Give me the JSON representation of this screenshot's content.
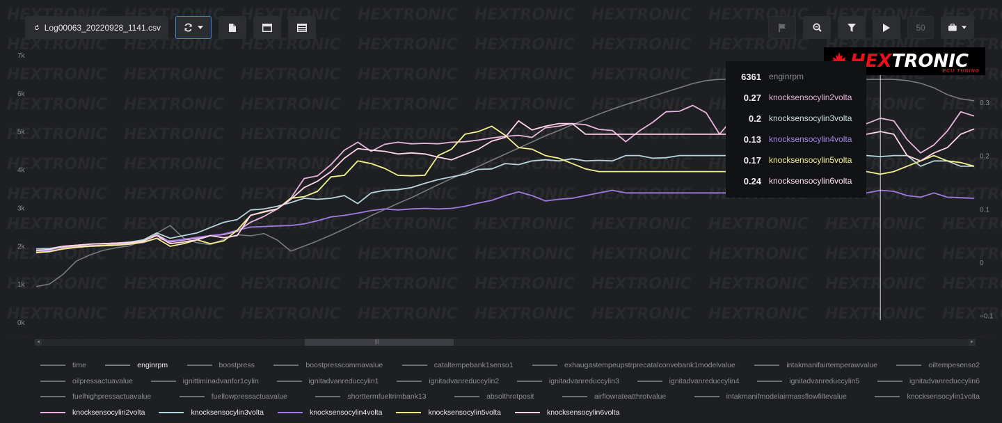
{
  "toolbar": {
    "file_name": "Log00063_20220928_1141.csv",
    "playback_speed": "50"
  },
  "logo": {
    "brand_white": "HEX",
    "brand_red": "TRONIC",
    "tagline": "ECU TUNING"
  },
  "colors": {
    "background": "#1e1f22",
    "enginrpm": "#7a7b80",
    "knocksensocylin2volta": "#e8b4dc",
    "knocksensocylin3volta": "#b6d6dc",
    "knocksensocylin4volta": "#9d7be0",
    "knocksensocylin5volta": "#f5f28e",
    "knocksensocylin6volta": "#ffd6e6",
    "accent": "#3a86e8"
  },
  "tooltip": [
    {
      "value": "6361",
      "name": "enginrpm",
      "color": "#8d8e93"
    },
    {
      "value": "0.27",
      "name": "knocksensocylin2volta",
      "color": "#e8b4dc"
    },
    {
      "value": "0.2",
      "name": "knocksensocylin3volta",
      "color": "#c6e0e4"
    },
    {
      "value": "0.13",
      "name": "knocksensocylin4volta",
      "color": "#a686ec"
    },
    {
      "value": "0.17",
      "name": "knocksensocylin5volta",
      "color": "#f5f28e"
    },
    {
      "value": "0.24",
      "name": "knocksensocylin6volta",
      "color": "#ffe0ec"
    }
  ],
  "legend_rows": [
    [
      "time",
      "enginrpm",
      "boostpress",
      "boostpresscommavalue",
      "cataltempebank1senso1",
      "exhaugastempeupstrprecatalconvebank1modelvalue",
      "intakmanifairtemperawvalue",
      "oiltempesenso2"
    ],
    [
      "oilpressactuavalue",
      "ignittiminadvanfor1cylin",
      "ignitadvanreduccylin1",
      "ignitadvanreduccylin2",
      "ignitadvanreduccylin3",
      "ignitadvanreduccylin4",
      "ignitadvanreduccylin5",
      "ignitadvanreduccylin6"
    ],
    [
      "fuelhighpressactuavalue",
      "fuellowpressactuavalue",
      "shorttermfueltrimbank13",
      "absolthrotposit",
      "airflowrateatthrotvalue",
      "intakmanifmodelairmassflowfiltevalue",
      "knocksensocylin1volta"
    ],
    [
      "knocksensocylin2volta",
      "knocksensocylin3volta",
      "knocksensocylin4volta",
      "knocksensocylin5volta",
      "knocksensocylin6volta"
    ]
  ],
  "legend_active": [
    "enginrpm",
    "knocksensocylin2volta",
    "knocksensocylin3volta",
    "knocksensocylin4volta",
    "knocksensocylin5volta",
    "knocksensocylin6volta"
  ],
  "chart_data": {
    "type": "line",
    "x": [
      0,
      1,
      2,
      3,
      4,
      5,
      6,
      7,
      8,
      9,
      10,
      11,
      12,
      13,
      14,
      15,
      16,
      17,
      18,
      19,
      20,
      21,
      22,
      23,
      24,
      25,
      26,
      27,
      28,
      29,
      30,
      31,
      32,
      33,
      34,
      35,
      36,
      37,
      38,
      39,
      40,
      41,
      42,
      43,
      44,
      45,
      46,
      47,
      48,
      49,
      50,
      51,
      52,
      53,
      54,
      55,
      56,
      57,
      58,
      59,
      60,
      61,
      62,
      63,
      64,
      65,
      66,
      67,
      68,
      69,
      70
    ],
    "y_left": {
      "ticks": [
        "0k",
        "1k",
        "2k",
        "3k",
        "4k",
        "5k",
        "6k",
        "7k"
      ],
      "range": [
        0,
        7000
      ]
    },
    "y_right": {
      "ticks": [
        "−0.1",
        "0",
        "0.1",
        "0.2",
        "0.3"
      ],
      "range": [
        -0.1,
        0.4
      ]
    },
    "cursor_x": 63,
    "series": [
      {
        "name": "enginrpm",
        "axis": "left",
        "values": [
          930,
          1000,
          1250,
          1600,
          1760,
          1880,
          1950,
          2000,
          2140,
          2330,
          2530,
          2200,
          2080,
          2030,
          2170,
          2290,
          2260,
          2320,
          2150,
          1860,
          1990,
          2130,
          2280,
          2440,
          2610,
          2790,
          2950,
          3110,
          3260,
          3430,
          3600,
          3760,
          3920,
          4080,
          4240,
          4400,
          4560,
          4720,
          4880,
          5020,
          5170,
          5310,
          5450,
          5580,
          5700,
          5810,
          5920,
          6030,
          6140,
          6250,
          6330,
          6360,
          6361,
          6361,
          6361,
          6361,
          6361,
          6361,
          6361,
          6361,
          6361,
          6361,
          6361,
          6361,
          6361,
          6330,
          6260,
          6140,
          5960,
          5850,
          5800
        ]
      },
      {
        "name": "knocksensocylin2volta",
        "axis": "right",
        "values": [
          0.02,
          0.025,
          0.028,
          0.03,
          0.031,
          0.032,
          0.034,
          0.036,
          0.04,
          0.052,
          0.038,
          0.042,
          0.045,
          0.05,
          0.052,
          0.058,
          0.075,
          0.086,
          0.1,
          0.12,
          0.157,
          0.162,
          0.183,
          0.21,
          0.225,
          0.208,
          0.221,
          0.225,
          0.222,
          0.223,
          0.222,
          0.225,
          0.226,
          0.229,
          0.233,
          0.236,
          0.238,
          0.234,
          0.252,
          0.255,
          0.26,
          0.258,
          0.249,
          0.247,
          0.226,
          0.246,
          0.262,
          0.282,
          0.283,
          0.294,
          0.28,
          0.24,
          0.27,
          0.272,
          0.275,
          0.282,
          0.26,
          0.285,
          0.27,
          0.271,
          0.268,
          0.265,
          0.26,
          0.27,
          0.265,
          0.23,
          0.205,
          0.22,
          0.246,
          0.282,
          0.274
        ]
      },
      {
        "name": "knocksensocylin3volta",
        "axis": "right",
        "values": [
          0.025,
          0.026,
          0.03,
          0.032,
          0.034,
          0.035,
          0.036,
          0.038,
          0.042,
          0.055,
          0.045,
          0.05,
          0.055,
          0.065,
          0.075,
          0.08,
          0.098,
          0.1,
          0.105,
          0.112,
          0.12,
          0.118,
          0.12,
          0.125,
          0.11,
          0.13,
          0.135,
          0.136,
          0.14,
          0.148,
          0.155,
          0.16,
          0.165,
          0.174,
          0.175,
          0.185,
          0.183,
          0.19,
          0.192,
          0.19,
          0.194,
          0.19,
          0.191,
          0.19,
          0.2,
          0.2,
          0.195,
          0.196,
          0.2,
          0.2,
          0.2,
          0.2,
          0.2,
          0.2,
          0.2,
          0.2,
          0.2,
          0.2,
          0.2,
          0.2,
          0.2,
          0.2,
          0.2,
          0.198,
          0.2,
          0.2,
          0.18,
          0.19,
          0.19,
          0.18,
          0.18
        ]
      },
      {
        "name": "knocksensocylin4volta",
        "axis": "right",
        "values": [
          0.02,
          0.022,
          0.025,
          0.028,
          0.03,
          0.031,
          0.032,
          0.034,
          0.037,
          0.045,
          0.04,
          0.043,
          0.047,
          0.05,
          0.053,
          0.06,
          0.066,
          0.067,
          0.068,
          0.069,
          0.072,
          0.078,
          0.085,
          0.088,
          0.092,
          0.097,
          0.1,
          0.098,
          0.1,
          0.101,
          0.1,
          0.101,
          0.105,
          0.111,
          0.116,
          0.125,
          0.132,
          0.125,
          0.115,
          0.118,
          0.12,
          0.125,
          0.13,
          0.135,
          0.13,
          0.13,
          0.13,
          0.13,
          0.13,
          0.13,
          0.13,
          0.13,
          0.13,
          0.13,
          0.13,
          0.13,
          0.13,
          0.13,
          0.13,
          0.13,
          0.13,
          0.13,
          0.13,
          0.135,
          0.133,
          0.125,
          0.122,
          0.13,
          0.122,
          0.121,
          0.12
        ]
      },
      {
        "name": "knocksensocylin5volta",
        "axis": "right",
        "values": [
          0.018,
          0.02,
          0.025,
          0.028,
          0.03,
          0.031,
          0.032,
          0.034,
          0.038,
          0.045,
          0.03,
          0.035,
          0.042,
          0.035,
          0.04,
          0.06,
          0.088,
          0.094,
          0.1,
          0.12,
          0.123,
          0.133,
          0.16,
          0.163,
          0.19,
          0.185,
          0.176,
          0.163,
          0.162,
          0.163,
          0.2,
          0.212,
          0.24,
          0.245,
          0.255,
          0.238,
          0.215,
          0.212,
          0.2,
          0.195,
          0.185,
          0.175,
          0.17,
          0.17,
          0.17,
          0.17,
          0.17,
          0.17,
          0.17,
          0.17,
          0.17,
          0.17,
          0.17,
          0.17,
          0.17,
          0.17,
          0.17,
          0.17,
          0.17,
          0.17,
          0.17,
          0.17,
          0.17,
          0.165,
          0.17,
          0.18,
          0.19,
          0.2,
          0.19,
          0.187,
          0.18
        ]
      },
      {
        "name": "knocksensocylin6volta",
        "axis": "right",
        "values": [
          0.022,
          0.024,
          0.03,
          0.032,
          0.034,
          0.035,
          0.036,
          0.037,
          0.04,
          0.05,
          0.035,
          0.038,
          0.042,
          0.05,
          0.046,
          0.05,
          0.088,
          0.095,
          0.1,
          0.118,
          0.14,
          0.152,
          0.17,
          0.195,
          0.213,
          0.21,
          0.208,
          0.203,
          0.205,
          0.203,
          0.197,
          0.192,
          0.202,
          0.212,
          0.227,
          0.234,
          0.265,
          0.248,
          0.255,
          0.26,
          0.26,
          0.24,
          0.24,
          0.24,
          0.24,
          0.24,
          0.24,
          0.24,
          0.24,
          0.24,
          0.24,
          0.24,
          0.24,
          0.24,
          0.24,
          0.24,
          0.24,
          0.24,
          0.24,
          0.24,
          0.24,
          0.24,
          0.24,
          0.245,
          0.24,
          0.2,
          0.19,
          0.205,
          0.215,
          0.24,
          0.25
        ]
      }
    ],
    "legend_placement": "bottom",
    "grid": false
  }
}
